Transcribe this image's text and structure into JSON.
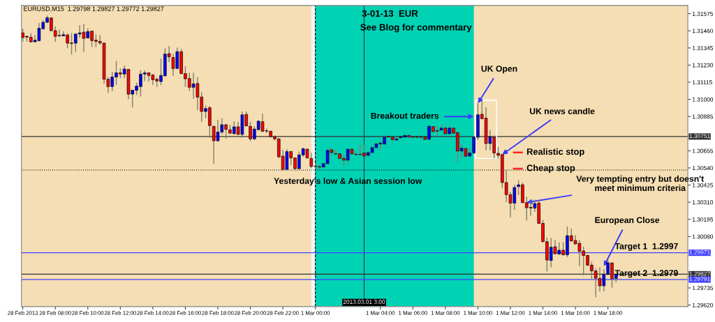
{
  "chart_data": {
    "type": "candlestick",
    "title": "EURUSD,M15  1.29798 1.29827 1.29772 1.29827",
    "subtitle": "3-01-13  EUR",
    "x": [
      "2013-02-28T06:00",
      "2013-02-28T06:15",
      "2013-02-28T06:30",
      "2013-02-28T06:45",
      "2013-02-28T07:00",
      "2013-02-28T07:15",
      "2013-02-28T07:30",
      "2013-02-28T07:45",
      "2013-02-28T08:00",
      "2013-02-28T08:15",
      "2013-02-28T08:30",
      "2013-02-28T08:45",
      "2013-02-28T09:00",
      "2013-02-28T09:15",
      "2013-02-28T09:30",
      "2013-02-28T09:45",
      "2013-02-28T10:00",
      "2013-02-28T10:15",
      "2013-02-28T10:30",
      "2013-02-28T10:45",
      "2013-02-28T11:00",
      "2013-02-28T11:15",
      "2013-02-28T11:30",
      "2013-02-28T11:45",
      "2013-02-28T12:00",
      "2013-02-28T12:15",
      "2013-02-28T12:30",
      "2013-02-28T12:45",
      "2013-02-28T13:00",
      "2013-02-28T13:15",
      "2013-02-28T13:30",
      "2013-02-28T13:45",
      "2013-02-28T14:00",
      "2013-02-28T14:15",
      "2013-02-28T14:30",
      "2013-02-28T14:45",
      "2013-02-28T15:00",
      "2013-02-28T15:15",
      "2013-02-28T15:30",
      "2013-02-28T15:45",
      "2013-02-28T16:00",
      "2013-02-28T16:15",
      "2013-02-28T16:30",
      "2013-02-28T16:45",
      "2013-02-28T17:00",
      "2013-02-28T17:15",
      "2013-02-28T17:30",
      "2013-02-28T17:45",
      "2013-02-28T18:00",
      "2013-02-28T18:15",
      "2013-02-28T18:30",
      "2013-02-28T18:45",
      "2013-02-28T19:00",
      "2013-02-28T19:15",
      "2013-02-28T19:30",
      "2013-02-28T19:45",
      "2013-02-28T20:00",
      "2013-02-28T20:15",
      "2013-02-28T20:30",
      "2013-02-28T20:45",
      "2013-02-28T21:00",
      "2013-02-28T21:15",
      "2013-02-28T21:30",
      "2013-02-28T21:45",
      "2013-02-28T22:00",
      "2013-02-28T22:15",
      "2013-02-28T22:30",
      "2013-02-28T22:45",
      "2013-02-28T23:00",
      "2013-02-28T23:15",
      "2013-02-28T23:30",
      "2013-02-28T23:45",
      "2013-03-01T00:00",
      "2013-03-01T00:15",
      "2013-03-01T00:30",
      "2013-03-01T00:45",
      "2013-03-01T01:00",
      "2013-03-01T01:15",
      "2013-03-01T01:30",
      "2013-03-01T01:45",
      "2013-03-01T02:00",
      "2013-03-01T02:15",
      "2013-03-01T02:30",
      "2013-03-01T02:45",
      "2013-03-01T03:00",
      "2013-03-01T03:15",
      "2013-03-01T03:30",
      "2013-03-01T03:45",
      "2013-03-01T04:00",
      "2013-03-01T04:15",
      "2013-03-01T04:30",
      "2013-03-01T04:45",
      "2013-03-01T05:00",
      "2013-03-01T05:15",
      "2013-03-01T05:30",
      "2013-03-01T05:45",
      "2013-03-01T06:00",
      "2013-03-01T06:15",
      "2013-03-01T06:30",
      "2013-03-01T06:45",
      "2013-03-01T07:00",
      "2013-03-01T07:15",
      "2013-03-01T07:30",
      "2013-03-01T07:45",
      "2013-03-01T08:00",
      "2013-03-01T08:15",
      "2013-03-01T08:30",
      "2013-03-01T08:45",
      "2013-03-01T09:00",
      "2013-03-01T09:15",
      "2013-03-01T09:30",
      "2013-03-01T09:45",
      "2013-03-01T10:00",
      "2013-03-01T10:15",
      "2013-03-01T10:30",
      "2013-03-01T10:45",
      "2013-03-01T11:00",
      "2013-03-01T11:15",
      "2013-03-01T11:30",
      "2013-03-01T11:45",
      "2013-03-01T12:00",
      "2013-03-01T12:15",
      "2013-03-01T12:30",
      "2013-03-01T12:45",
      "2013-03-01T13:00",
      "2013-03-01T13:15",
      "2013-03-01T13:30",
      "2013-03-01T13:45",
      "2013-03-01T14:00",
      "2013-03-01T14:15",
      "2013-03-01T14:30",
      "2013-03-01T14:45",
      "2013-03-01T15:00",
      "2013-03-01T15:15",
      "2013-03-01T15:30",
      "2013-03-01T15:45",
      "2013-03-01T16:00",
      "2013-03-01T16:15",
      "2013-03-01T16:30",
      "2013-03-01T16:45",
      "2013-03-01T17:00",
      "2013-03-01T17:15",
      "2013-03-01T17:30",
      "2013-03-01T17:45",
      "2013-03-01T18:00",
      "2013-03-01T18:15",
      "2013-03-01T18:30"
    ],
    "ohlc": [
      [
        1.31446,
        1.31474,
        1.31389,
        1.31415
      ],
      [
        1.31423,
        1.31428,
        1.31389,
        1.31418
      ],
      [
        1.31417,
        1.31443,
        1.31381,
        1.31386
      ],
      [
        1.31386,
        1.31432,
        1.31381,
        1.31397
      ],
      [
        1.31394,
        1.31512,
        1.31389,
        1.31477
      ],
      [
        1.31474,
        1.31532,
        1.31466,
        1.31517
      ],
      [
        1.31517,
        1.31562,
        1.31512,
        1.31548
      ],
      [
        1.31546,
        1.31551,
        1.31458,
        1.31461
      ],
      [
        1.31461,
        1.31489,
        1.31386,
        1.31423
      ],
      [
        1.31429,
        1.31469,
        1.3142,
        1.31426
      ],
      [
        1.31426,
        1.31458,
        1.31423,
        1.31434
      ],
      [
        1.31432,
        1.31443,
        1.31343,
        1.31377
      ],
      [
        1.31378,
        1.31446,
        1.31301,
        1.31375
      ],
      [
        1.31377,
        1.31446,
        1.31317,
        1.31438
      ],
      [
        1.31438,
        1.31497,
        1.31412,
        1.31446
      ],
      [
        1.31451,
        1.31508,
        1.31317,
        1.31409
      ],
      [
        1.31412,
        1.31477,
        1.31409,
        1.31455
      ],
      [
        1.31458,
        1.31461,
        1.31351,
        1.31394
      ],
      [
        1.31397,
        1.31435,
        1.31351,
        1.31389
      ],
      [
        1.31389,
        1.31432,
        1.31366,
        1.31378
      ],
      [
        1.31377,
        1.31384,
        1.31104,
        1.31135
      ],
      [
        1.31135,
        1.3115,
        1.31043,
        1.31086
      ],
      [
        1.31086,
        1.31184,
        1.31055,
        1.3115
      ],
      [
        1.3115,
        1.31258,
        1.31096,
        1.31178
      ],
      [
        1.31178,
        1.31207,
        1.31143,
        1.3117
      ],
      [
        1.3117,
        1.31227,
        1.31143,
        1.31204
      ],
      [
        1.31201,
        1.31204,
        1.31001,
        1.31035
      ],
      [
        1.31035,
        1.31066,
        1.30946,
        1.31061
      ],
      [
        1.31061,
        1.31112,
        1.3103,
        1.31089
      ],
      [
        1.31086,
        1.31194,
        1.31019,
        1.31169
      ],
      [
        1.3117,
        1.31194,
        1.31123,
        1.31178
      ],
      [
        1.31178,
        1.31181,
        1.3112,
        1.31161
      ],
      [
        1.31163,
        1.3117,
        1.31096,
        1.31132
      ],
      [
        1.31135,
        1.31146,
        1.31084,
        1.31123
      ],
      [
        1.3112,
        1.31274,
        1.31096,
        1.31161
      ],
      [
        1.31158,
        1.31343,
        1.31153,
        1.31304
      ],
      [
        1.31307,
        1.31358,
        1.3125,
        1.31286
      ],
      [
        1.31281,
        1.31307,
        1.31158,
        1.31207
      ],
      [
        1.31207,
        1.31348,
        1.31204,
        1.3132
      ],
      [
        1.3132,
        1.31338,
        1.31169,
        1.31173
      ],
      [
        1.31173,
        1.31223,
        1.31084,
        1.31138
      ],
      [
        1.3114,
        1.31178,
        1.31055,
        1.31081
      ],
      [
        1.31081,
        1.31178,
        1.31004,
        1.31104
      ],
      [
        1.31107,
        1.3115,
        1.30927,
        1.31015
      ],
      [
        1.31016,
        1.3105,
        1.30847,
        1.30919
      ],
      [
        1.30919,
        1.30958,
        1.30873,
        1.30938
      ],
      [
        1.30944,
        1.30955,
        1.30742,
        1.30824
      ],
      [
        1.30819,
        1.30824,
        1.30568,
        1.30722
      ],
      [
        1.30722,
        1.30862,
        1.30716,
        1.30781
      ],
      [
        1.30781,
        1.30873,
        1.30765,
        1.3083
      ],
      [
        1.3083,
        1.30835,
        1.30735,
        1.30799
      ],
      [
        1.30796,
        1.3083,
        1.30768,
        1.30773
      ],
      [
        1.3077,
        1.30853,
        1.30765,
        1.30816
      ],
      [
        1.30816,
        1.3085,
        1.30762,
        1.30765
      ],
      [
        1.30765,
        1.30919,
        1.30742,
        1.30896
      ],
      [
        1.30899,
        1.30919,
        1.30819,
        1.30822
      ],
      [
        1.30819,
        1.3085,
        1.30719,
        1.30735
      ],
      [
        1.30735,
        1.3082,
        1.30727,
        1.30801
      ],
      [
        1.30797,
        1.30858,
        1.30789,
        1.30854
      ],
      [
        1.3085,
        1.30904,
        1.30781,
        1.30786
      ],
      [
        1.3079,
        1.30804,
        1.30773,
        1.30787
      ],
      [
        1.30786,
        1.30789,
        1.30743,
        1.3075
      ],
      [
        1.3075,
        1.30758,
        1.30723,
        1.30735
      ],
      [
        1.30735,
        1.30738,
        1.30604,
        1.30615
      ],
      [
        1.30619,
        1.30661,
        1.30522,
        1.3053
      ],
      [
        1.3053,
        1.30666,
        1.30527,
        1.3065
      ],
      [
        1.3065,
        1.30653,
        1.30558,
        1.30607
      ],
      [
        1.30607,
        1.3061,
        1.3053,
        1.30535
      ],
      [
        1.30535,
        1.3065,
        1.3053,
        1.30627
      ],
      [
        1.30627,
        1.30676,
        1.30615,
        1.30669
      ],
      [
        1.30666,
        1.30669,
        1.30604,
        1.30607
      ],
      [
        1.30604,
        1.30643,
        1.30538,
        1.3055
      ],
      [
        1.30552,
        1.30573,
        1.3053,
        1.30549
      ],
      [
        1.30549,
        1.30561,
        1.3053,
        1.30546
      ],
      [
        1.30547,
        1.30573,
        1.30538,
        1.30569
      ],
      [
        1.30569,
        1.30673,
        1.30566,
        1.30658
      ],
      [
        1.30661,
        1.30676,
        1.30627,
        1.30643
      ],
      [
        1.30636,
        1.30666,
        1.3063,
        1.30633
      ],
      [
        1.30635,
        1.3064,
        1.30601,
        1.30604
      ],
      [
        1.30604,
        1.3063,
        1.30547,
        1.30592
      ],
      [
        1.30592,
        1.30669,
        1.30569,
        1.30666
      ],
      [
        1.30666,
        1.30669,
        1.3063,
        1.30635
      ],
      [
        1.30632,
        1.3065,
        1.30626,
        1.30629
      ],
      [
        1.30632,
        1.30696,
        1.30626,
        1.30629
      ],
      [
        1.3064,
        1.30696,
        1.30612,
        1.30619
      ],
      [
        1.30624,
        1.3065,
        1.30612,
        1.30643
      ],
      [
        1.30643,
        1.30689,
        1.3064,
        1.30676
      ],
      [
        1.30676,
        1.30712,
        1.30673,
        1.30701
      ],
      [
        1.30701,
        1.30717,
        1.30661,
        1.30707
      ],
      [
        1.307,
        1.30758,
        1.30696,
        1.30747
      ],
      [
        1.30752,
        1.30758,
        1.30743,
        1.30749
      ],
      [
        1.30747,
        1.3075,
        1.3072,
        1.3073
      ],
      [
        1.30727,
        1.30746,
        1.30723,
        1.30735
      ],
      [
        1.30743,
        1.30753,
        1.30735,
        1.3075
      ],
      [
        1.30747,
        1.30763,
        1.30743,
        1.30758
      ],
      [
        1.30758,
        1.30761,
        1.30743,
        1.30747
      ],
      [
        1.30749,
        1.30758,
        1.30738,
        1.30746
      ],
      [
        1.30749,
        1.30758,
        1.30738,
        1.30746
      ],
      [
        1.30749,
        1.30758,
        1.30738,
        1.30746
      ],
      [
        1.30747,
        1.3075,
        1.30727,
        1.30732
      ],
      [
        1.30732,
        1.30823,
        1.30727,
        1.3082
      ],
      [
        1.30817,
        1.3082,
        1.30778,
        1.30784
      ],
      [
        1.3079,
        1.3082,
        1.3075,
        1.30787
      ],
      [
        1.30794,
        1.30827,
        1.30789,
        1.30807
      ],
      [
        1.30807,
        1.30817,
        1.30766,
        1.30769
      ],
      [
        1.30769,
        1.3082,
        1.30766,
        1.30807
      ],
      [
        1.30807,
        1.30812,
        1.3077,
        1.30773
      ],
      [
        1.30778,
        1.30781,
        1.30581,
        1.30653
      ],
      [
        1.30653,
        1.30701,
        1.30607,
        1.30673
      ],
      [
        1.3067,
        1.30676,
        1.30609,
        1.30619
      ],
      [
        1.30619,
        1.30673,
        1.30616,
        1.3064
      ],
      [
        1.3064,
        1.3075,
        1.30635,
        1.30746
      ],
      [
        1.30746,
        1.30974,
        1.30727,
        1.30897
      ],
      [
        1.309,
        1.30994,
        1.30866,
        1.30871
      ],
      [
        1.30874,
        1.30948,
        1.30658,
        1.30704
      ],
      [
        1.30704,
        1.30794,
        1.30658,
        1.3075
      ],
      [
        1.30747,
        1.30758,
        1.30604,
        1.3064
      ],
      [
        1.30638,
        1.30681,
        1.30604,
        1.30624
      ],
      [
        1.3063,
        1.3063,
        1.30404,
        1.30442
      ],
      [
        1.30442,
        1.30524,
        1.30311,
        1.30361
      ],
      [
        1.30361,
        1.30381,
        1.30208,
        1.30304
      ],
      [
        1.30304,
        1.30427,
        1.30258,
        1.30409
      ],
      [
        1.30415,
        1.30458,
        1.30358,
        1.30427
      ],
      [
        1.30427,
        1.30442,
        1.30304,
        1.30307
      ],
      [
        1.30307,
        1.30347,
        1.30188,
        1.30273
      ],
      [
        1.30275,
        1.30319,
        1.30219,
        1.30271
      ],
      [
        1.3027,
        1.30327,
        1.30245,
        1.30301
      ],
      [
        1.30304,
        1.30327,
        1.30165,
        1.30168
      ],
      [
        1.30168,
        1.30191,
        1.30042,
        1.30045
      ],
      [
        1.30045,
        1.30073,
        1.29845,
        1.29922
      ],
      [
        1.29919,
        1.3007,
        1.29873,
        1.30008
      ],
      [
        1.30011,
        1.30057,
        1.29957,
        1.29965
      ],
      [
        1.29962,
        1.30042,
        1.29957,
        1.29988
      ],
      [
        1.29988,
        1.30042,
        1.29953,
        1.29957
      ],
      [
        1.29957,
        1.30147,
        1.29942,
        1.30085
      ],
      [
        1.30085,
        1.30134,
        1.30045,
        1.3005
      ],
      [
        1.30053,
        1.30088,
        1.30027,
        1.3003
      ],
      [
        1.30034,
        1.30057,
        1.2988,
        1.2998
      ],
      [
        1.29983,
        1.30011,
        1.29819,
        1.29953
      ],
      [
        1.29953,
        1.29957,
        1.2988,
        1.29888
      ],
      [
        1.29888,
        1.29911,
        1.29796,
        1.29849
      ],
      [
        1.29849,
        1.29865,
        1.29672,
        1.298
      ],
      [
        1.29799,
        1.29873,
        1.29711,
        1.29749
      ],
      [
        1.29749,
        1.2986,
        1.29711,
        1.29826
      ],
      [
        1.29826,
        1.29926,
        1.29819,
        1.29903
      ],
      [
        1.29903,
        1.29906,
        1.29737,
        1.29796
      ],
      [
        1.29798,
        1.29827,
        1.29772,
        1.29827
      ]
    ],
    "colors": [
      "#ff0000",
      "#ff0000",
      "#ff0000",
      "#0000ff",
      "#0000ff",
      "#0000ff",
      "#0000ff",
      "#ff0000",
      "#ff0000",
      "#ff0000",
      "#0000ff",
      "#ff0000",
      "#ff0000",
      "#0000ff",
      "#0000ff",
      "#ff0000",
      "#0000ff",
      "#ff0000",
      "#ff0000",
      "#ff0000",
      "#ff0000",
      "#ff0000",
      "#0000ff",
      "#0000ff",
      "#ff0000",
      "#0000ff",
      "#ff0000",
      "#0000ff",
      "#0000ff",
      "#0000ff",
      "#0000ff",
      "#ff0000",
      "#ff0000",
      "#ff0000",
      "#0000ff",
      "#0000ff",
      "#ff0000",
      "#ff0000",
      "#0000ff",
      "#ff0000",
      "#ff0000",
      "#ff0000",
      "#0000ff",
      "#ff0000",
      "#ff0000",
      "#0000ff",
      "#ff0000",
      "#ff0000",
      "#0000ff",
      "#0000ff",
      "#ff0000",
      "#ff0000",
      "#0000ff",
      "#ff0000",
      "#0000ff",
      "#ff0000",
      "#ff0000",
      "#0000ff",
      "#0000ff",
      "#ff0000",
      "#ff0000",
      "#ff0000",
      "#ff0000",
      "#ff0000",
      "#ff0000",
      "#0000ff",
      "#ff0000",
      "#ff0000",
      "#0000ff",
      "#0000ff",
      "#ff0000",
      "#ff0000",
      "#ff0000",
      "#ff0000",
      "#0000ff",
      "#0000ff",
      "#ff0000",
      "#ff0000",
      "#ff0000",
      "#ff0000",
      "#0000ff",
      "#ff0000",
      "#ff0000",
      "#ff0000",
      "#ff0000",
      "#0000ff",
      "#0000ff",
      "#0000ff",
      "#0000ff",
      "#0000ff",
      "#ff0000",
      "#ff0000",
      "#0000ff",
      "#0000ff",
      "#0000ff",
      "#ff0000",
      "#ff0000",
      "#ff0000",
      "#ff0000",
      "#ff0000",
      "#0000ff",
      "#ff0000",
      "#ff0000",
      "#0000ff",
      "#ff0000",
      "#0000ff",
      "#ff0000",
      "#ff0000",
      "#0000ff",
      "#ff0000",
      "#0000ff",
      "#0000ff",
      "#0000ff",
      "#ff0000",
      "#ff0000",
      "#0000ff",
      "#ff0000",
      "#ff0000",
      "#ff0000",
      "#ff0000",
      "#ff0000",
      "#0000ff",
      "#0000ff",
      "#ff0000",
      "#ff0000",
      "#ff0000",
      "#0000ff",
      "#ff0000",
      "#ff0000",
      "#ff0000",
      "#0000ff",
      "#ff0000",
      "#0000ff",
      "#ff0000",
      "#0000ff",
      "#ff0000",
      "#ff0000",
      "#ff0000",
      "#ff0000",
      "#ff0000",
      "#ff0000",
      "#ff0000",
      "#ff0000",
      "#0000ff",
      "#0000ff",
      "#ff0000",
      "#0000ff"
    ],
    "xlim": [
      "2013-02-28T05:55",
      "2013-03-01T22:55"
    ],
    "xticks": [
      {
        "value": "2013-02-28T06:00",
        "label": "28 Feb 2013"
      },
      {
        "value": "2013-02-28T08:00",
        "label": "28 Feb 08:00"
      },
      {
        "value": "2013-02-28T10:00",
        "label": "28 Feb 10:00"
      },
      {
        "value": "2013-02-28T12:00",
        "label": "28 Feb 12:00"
      },
      {
        "value": "2013-02-28T14:00",
        "label": "28 Feb 14:00"
      },
      {
        "value": "2013-02-28T16:00",
        "label": "28 Feb 16:00"
      },
      {
        "value": "2013-02-28T18:00",
        "label": "28 Feb 18:00"
      },
      {
        "value": "2013-02-28T20:00",
        "label": "28 Feb 20:00"
      },
      {
        "value": "2013-02-28T22:00",
        "label": "28 Feb 22:00"
      },
      {
        "value": "2013-03-01T00:00",
        "label": "1 Mar 00:00"
      },
      {
        "value": "2013-03-01T04:00",
        "label": "1 Mar 04:00"
      },
      {
        "value": "2013-03-01T06:00",
        "label": "1 Mar 06:00"
      },
      {
        "value": "2013-03-01T08:00",
        "label": "1 Mar 08:00"
      },
      {
        "value": "2013-03-01T10:00",
        "label": "1 Mar 10:00"
      },
      {
        "value": "2013-03-01T12:00",
        "label": "1 Mar 12:00"
      },
      {
        "value": "2013-03-01T14:00",
        "label": "1 Mar 14:00"
      },
      {
        "value": "2013-03-01T16:00",
        "label": "1 Mar 16:00"
      },
      {
        "value": "2013-03-01T18:00",
        "label": "1 Mar 18:00"
      }
    ],
    "ylim": [
      1.2961,
      1.3163
    ],
    "yticks": [
      {
        "value": 1.31575,
        "label": "1.31575"
      },
      {
        "value": 1.3146,
        "label": "1.31460"
      },
      {
        "value": 1.31345,
        "label": "1.31345"
      },
      {
        "value": 1.3123,
        "label": "1.31230"
      },
      {
        "value": 1.31115,
        "label": "1.31115"
      },
      {
        "value": 1.31,
        "label": "1.31000"
      },
      {
        "value": 1.30885,
        "label": "1.30885"
      },
      {
        "value": 1.30655,
        "label": "1.30655"
      },
      {
        "value": 1.3054,
        "label": "1.30540"
      },
      {
        "value": 1.30425,
        "label": "1.30425"
      },
      {
        "value": 1.3031,
        "label": "1.30310"
      },
      {
        "value": 1.30195,
        "label": "1.30195"
      },
      {
        "value": 1.3008,
        "label": "1.30080"
      },
      {
        "value": 1.29735,
        "label": "1.29735"
      },
      {
        "value": 1.2962,
        "label": "1.29620"
      }
    ],
    "grid": false,
    "bands": [
      {
        "axis": "x",
        "from": "2013-02-28T05:55",
        "to": "2013-02-28T23:45",
        "color": "#f5deb3"
      },
      {
        "axis": "x",
        "from": "2013-03-01T00:00",
        "to": "2013-03-01T22:55",
        "color": "#f5deb3"
      },
      {
        "axis": "x",
        "from": "2013-03-01T00:00",
        "to": "2013-03-01T09:45",
        "color": "#00d2b4"
      }
    ],
    "ref_lines": [
      {
        "axis": "x",
        "value": "2013-03-01T00:00",
        "color": "#000000",
        "line_style": "dashed"
      },
      {
        "axis": "x",
        "value": "2013-03-01T03:00",
        "label": "2013.03.01 3:00",
        "color": "#303030"
      },
      {
        "axis": "y",
        "value": 1.30751,
        "label": "1.30751",
        "color": "#303030"
      },
      {
        "axis": "y",
        "value": 1.30526,
        "color": "#000000",
        "line_style": "dotted"
      },
      {
        "axis": "y",
        "value": 1.29971,
        "label": "1.29971",
        "color": "#4040ff"
      },
      {
        "axis": "y",
        "value": 1.29827,
        "label": "1.29827",
        "color": "#303030"
      },
      {
        "axis": "y",
        "value": 1.29791,
        "label": "1.29791",
        "color": "#4040ff"
      }
    ],
    "annotations": [
      "See Blog for commentary",
      "Realistic stop",
      "Cheap stop",
      {
        "text": "UK Open",
        "x": "2013-03-01T10:00",
        "y": 1.30974
      },
      {
        "text": "Breakout traders",
        "x": "2013-03-01T09:45",
        "y": 1.30885
      },
      {
        "text": "UK news candle",
        "x": "2013-03-01T11:30",
        "y": 1.3063
      },
      {
        "text": "Very tempting entry but doesn't\nmeet minimum criteria",
        "x": "2013-03-01T13:00",
        "y": 1.30308
      },
      {
        "text": "European Close",
        "x": "2013-03-01T17:45",
        "y": 1.2988
      },
      {
        "text": "Target 1  1.2997",
        "x": "2013-03-01T19:30",
        "y": 1.29971
      },
      {
        "text": "Target 2  1.2979",
        "x": "2013-03-01T19:30",
        "y": 1.29791
      },
      {
        "text": "Yesterday's low & Asian session low",
        "x": "2013-03-01T02:00",
        "y": 1.30526
      }
    ]
  }
}
